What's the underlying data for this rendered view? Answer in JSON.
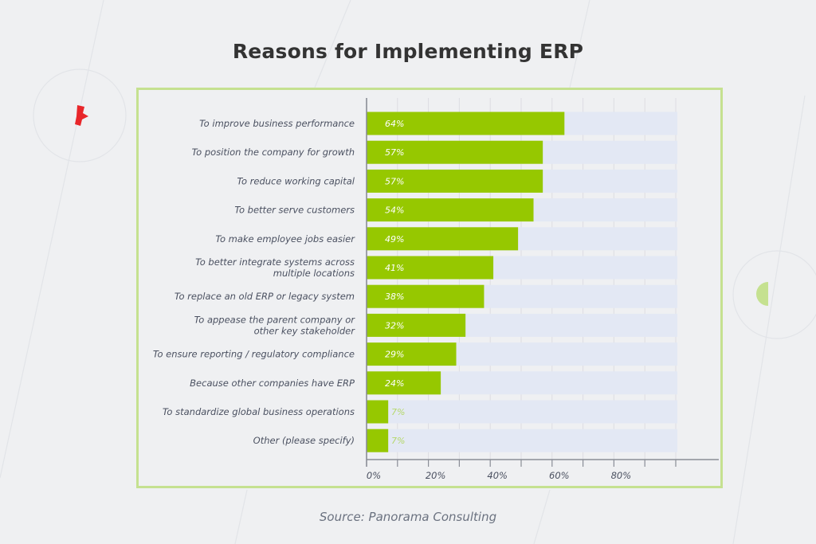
{
  "title": "Reasons for Implementing ERP",
  "source": "Source: Panorama Consulting",
  "colors": {
    "bar": "#96c800",
    "track": "#e3e8f4",
    "frame": "#c5e190",
    "accent_red": "#e8262a",
    "accent_green": "#c5e190",
    "value_text_inside": "#ffffff",
    "value_text_outside": "#b5d86a"
  },
  "chart_data": {
    "type": "bar",
    "orientation": "horizontal",
    "categories": [
      "To improve business performance",
      "To position the company for growth",
      "To reduce working capital",
      "To better serve customers",
      "To make employee jobs easier",
      "To better integrate systems across\nmultiple locations",
      "To replace an old ERP or legacy system",
      "To appease the parent company or\nother key stakeholder",
      "To ensure reporting / regulatory compliance",
      "Because other companies have ERP",
      "To standardize global business operations",
      "Other (please specify)"
    ],
    "values": [
      64,
      57,
      57,
      54,
      49,
      41,
      38,
      32,
      29,
      24,
      7,
      7
    ],
    "value_labels": [
      "64%",
      "57%",
      "57%",
      "54%",
      "49%",
      "41%",
      "38%",
      "32%",
      "29%",
      "24%",
      "7%",
      "7%"
    ],
    "xticks": [
      "0%",
      "20%",
      "40%",
      "60%",
      "80%"
    ],
    "xlim": [
      0,
      100
    ],
    "grid": true,
    "legend": "none"
  }
}
